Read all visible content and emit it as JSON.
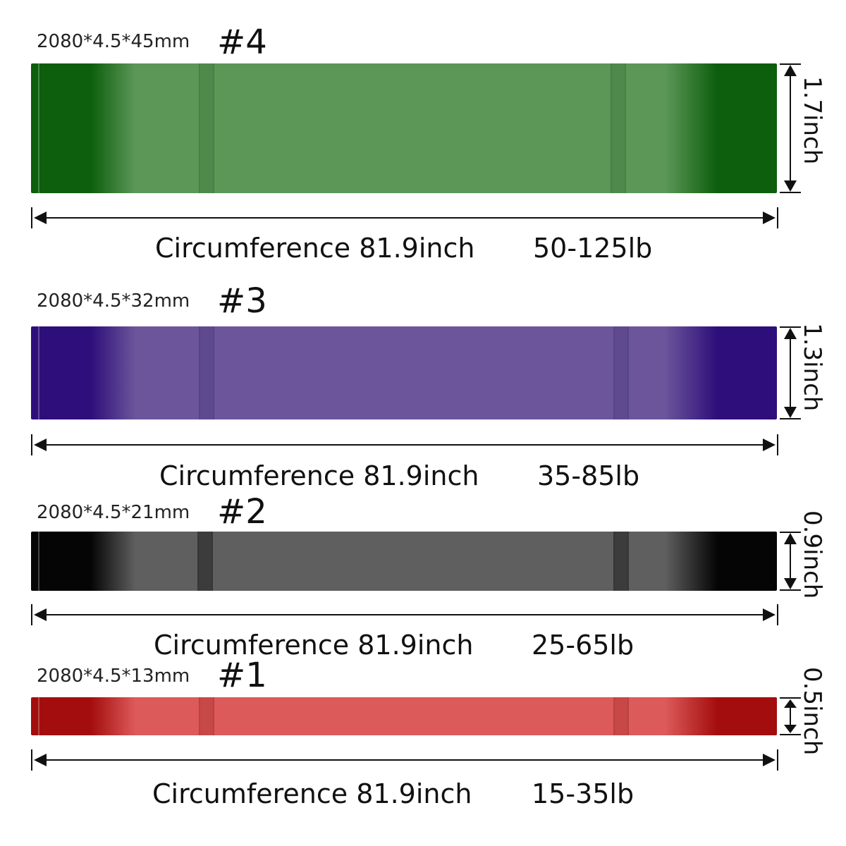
{
  "bands": [
    {
      "spec": "2080*4.5*45mm",
      "number": "#4",
      "height_label": "1.7inch",
      "circumference": "Circumference 81.9inch",
      "resistance": "50-125lb",
      "color_name": "green",
      "colors": {
        "dark": "#0d5e0d",
        "main": "#5c9758",
        "clip": "#4f8a4c"
      }
    },
    {
      "spec": "2080*4.5*32mm",
      "number": "#3",
      "height_label": "1.3inch",
      "circumference": "Circumference 81.9inch",
      "resistance": "35-85lb",
      "color_name": "purple",
      "colors": {
        "dark": "#2e0e7a",
        "main": "#6c559b",
        "clip": "#5f4a90"
      }
    },
    {
      "spec": "2080*4.5*21mm",
      "number": "#2",
      "height_label": "0.9inch",
      "circumference": "Circumference 81.9inch",
      "resistance": "25-65lb",
      "color_name": "black",
      "colors": {
        "dark": "#050505",
        "main": "#5f5f5f",
        "clip": "#3c3c3c"
      }
    },
    {
      "spec": "2080*4.5*13mm",
      "number": "#1",
      "height_label": "0.5inch",
      "circumference": "Circumference 81.9inch",
      "resistance": "15-35lb",
      "color_name": "red",
      "colors": {
        "dark": "#a40d0d",
        "main": "#dd5a5a",
        "clip": "#c84848"
      }
    }
  ]
}
